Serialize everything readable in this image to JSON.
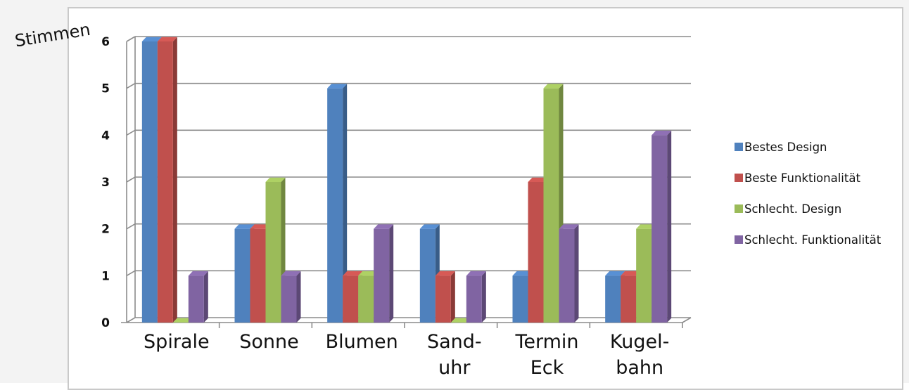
{
  "chart_data": {
    "type": "bar",
    "ylabel": "Stimmen",
    "ylim": [
      0,
      6
    ],
    "yticks": [
      0,
      1,
      2,
      3,
      4,
      5,
      6
    ],
    "grid": true,
    "legend_position": "right",
    "categories": [
      [
        "Spirale"
      ],
      [
        "Sonne"
      ],
      [
        "Blumen"
      ],
      [
        "Sand-",
        "uhr"
      ],
      [
        "Termin",
        "Eck"
      ],
      [
        "Kugel-",
        "bahn"
      ]
    ],
    "series": [
      {
        "name": "Bestes Design",
        "color": "#4f81bd",
        "values": [
          6,
          2,
          5,
          2,
          1,
          1
        ]
      },
      {
        "name": "Beste Funktionalität",
        "color": "#c0504d",
        "values": [
          6,
          2,
          1,
          1,
          3,
          1
        ]
      },
      {
        "name": "Schlecht. Design",
        "color": "#9bbb59",
        "values": [
          0,
          3,
          1,
          0,
          5,
          2
        ]
      },
      {
        "name": "Schlecht. Funktionalität",
        "color": "#8064a2",
        "values": [
          1,
          1,
          2,
          1,
          2,
          4
        ]
      }
    ]
  }
}
